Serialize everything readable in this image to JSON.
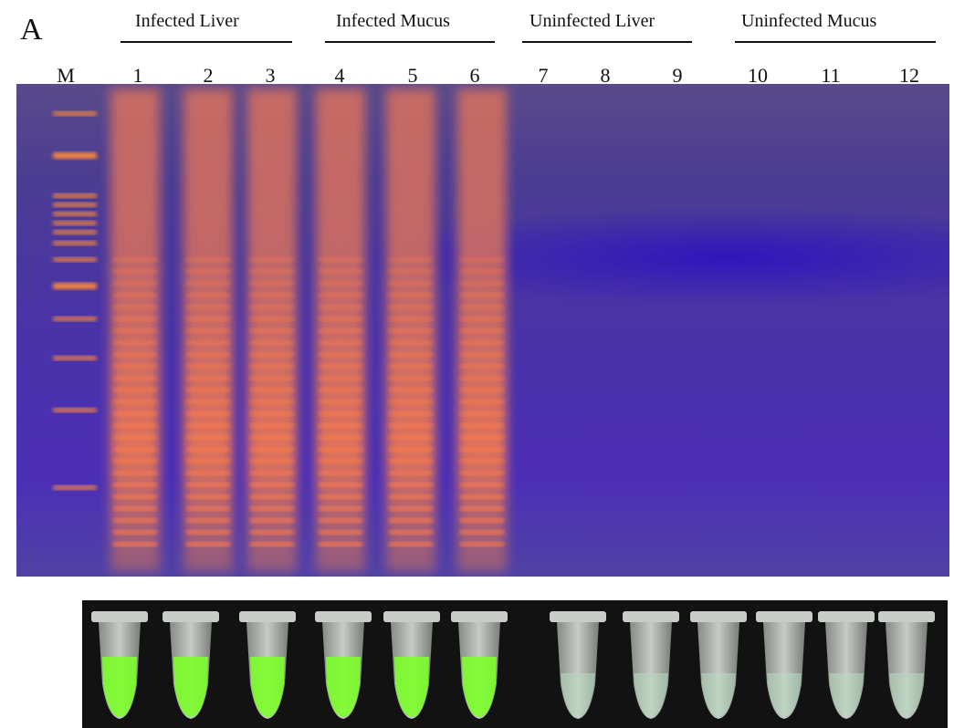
{
  "panel_label": "A",
  "groups": [
    {
      "label": "Infected Liver"
    },
    {
      "label": "Infected Mucus"
    },
    {
      "label": "Uninfected Liver"
    },
    {
      "label": "Uninfected Mucus"
    }
  ],
  "lanes": [
    "M",
    "1",
    "2",
    "3",
    "4",
    "5",
    "6",
    "7",
    "8",
    "9",
    "10",
    "11",
    "12"
  ],
  "lanes_positive": [
    false,
    true,
    true,
    true,
    true,
    true,
    true,
    false,
    false,
    false,
    false,
    false,
    false
  ],
  "tubes_positive": [
    true,
    true,
    true,
    true,
    true,
    true,
    false,
    false,
    false,
    false,
    false,
    false
  ],
  "colors": {
    "gel_background": "#4a33a8",
    "positive_band": "#ff7a4a",
    "marker_band": "#ff8a3a",
    "tube_positive": "#7cff2a",
    "tube_negative": "#b8dcc0",
    "strip_background": "#121212"
  }
}
